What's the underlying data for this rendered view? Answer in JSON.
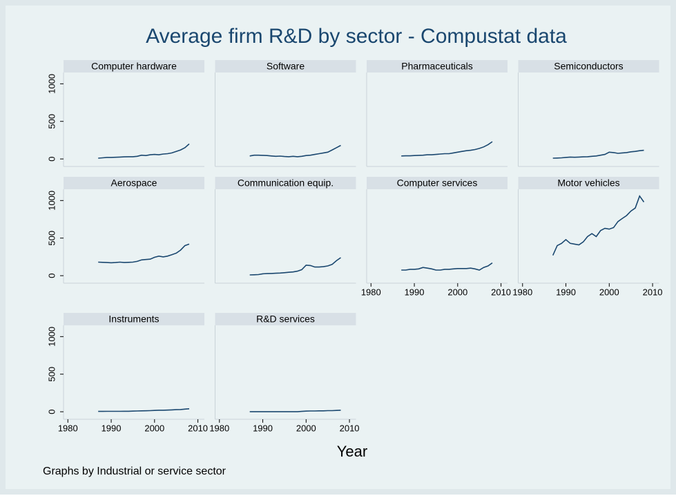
{
  "chart_data": {
    "type": "line",
    "title": "Average firm R&D by sector - Compustat data",
    "x_label": "Year",
    "note": "Graphs by Industrial or service sector",
    "x": [
      1987,
      1988,
      1989,
      1990,
      1991,
      1992,
      1993,
      1994,
      1995,
      1996,
      1997,
      1998,
      1999,
      2000,
      2001,
      2002,
      2003,
      2004,
      2005,
      2006,
      2007,
      2008
    ],
    "series": [
      {
        "name": "Computer hardware",
        "color": "#1a476f",
        "values": [
          10,
          15,
          20,
          20,
          22,
          25,
          28,
          30,
          30,
          35,
          50,
          45,
          55,
          60,
          55,
          65,
          70,
          80,
          100,
          120,
          150,
          200
        ]
      },
      {
        "name": "Software",
        "color": "#1a476f",
        "values": [
          40,
          50,
          50,
          48,
          45,
          40,
          35,
          38,
          32,
          30,
          35,
          30,
          35,
          45,
          50,
          60,
          70,
          80,
          90,
          120,
          150,
          180
        ]
      },
      {
        "name": "Pharmaceuticals",
        "color": "#1a476f",
        "values": [
          40,
          42,
          42,
          45,
          48,
          50,
          55,
          55,
          60,
          65,
          70,
          70,
          80,
          90,
          100,
          110,
          115,
          125,
          140,
          160,
          190,
          230
        ]
      },
      {
        "name": "Semiconductors",
        "color": "#1a476f",
        "values": [
          10,
          12,
          15,
          20,
          25,
          22,
          25,
          28,
          30,
          35,
          40,
          50,
          60,
          90,
          85,
          75,
          80,
          85,
          95,
          100,
          110,
          115
        ]
      },
      {
        "name": "Aerospace",
        "color": "#1a476f",
        "values": [
          180,
          178,
          175,
          172,
          175,
          180,
          175,
          178,
          180,
          190,
          210,
          215,
          220,
          245,
          260,
          250,
          260,
          280,
          300,
          340,
          400,
          420
        ]
      },
      {
        "name": "Communication equip.",
        "color": "#1a476f",
        "values": [
          10,
          12,
          15,
          25,
          28,
          30,
          32,
          35,
          40,
          45,
          50,
          60,
          80,
          140,
          135,
          115,
          115,
          120,
          130,
          150,
          200,
          240
        ]
      },
      {
        "name": "Computer services",
        "color": "#1a476f",
        "values": [
          75,
          75,
          85,
          85,
          90,
          110,
          100,
          90,
          75,
          75,
          85,
          85,
          90,
          95,
          95,
          95,
          100,
          90,
          75,
          110,
          130,
          170
        ]
      },
      {
        "name": "Motor vehicles",
        "color": "#1a476f",
        "values": [
          270,
          400,
          430,
          480,
          430,
          420,
          410,
          450,
          520,
          560,
          520,
          600,
          630,
          620,
          640,
          720,
          760,
          800,
          860,
          900,
          1060,
          980
        ]
      },
      {
        "name": "Instruments",
        "color": "#1a476f",
        "values": [
          5,
          5,
          6,
          6,
          6,
          6,
          7,
          7,
          8,
          10,
          12,
          13,
          15,
          18,
          20,
          20,
          22,
          25,
          28,
          30,
          35,
          40
        ]
      },
      {
        "name": "R&D services",
        "color": "#1a476f",
        "values": [
          0,
          0,
          0,
          0,
          0,
          0,
          0,
          0,
          0,
          0,
          0,
          0,
          5,
          8,
          10,
          10,
          12,
          12,
          15,
          15,
          18,
          20
        ]
      }
    ],
    "xlim": [
      1979,
      2011.5
    ],
    "xticks": [
      1980,
      1990,
      2000,
      2010
    ],
    "ylim": [
      -100,
      1150
    ],
    "yticks": [
      0,
      500,
      1000
    ],
    "grid": false
  }
}
